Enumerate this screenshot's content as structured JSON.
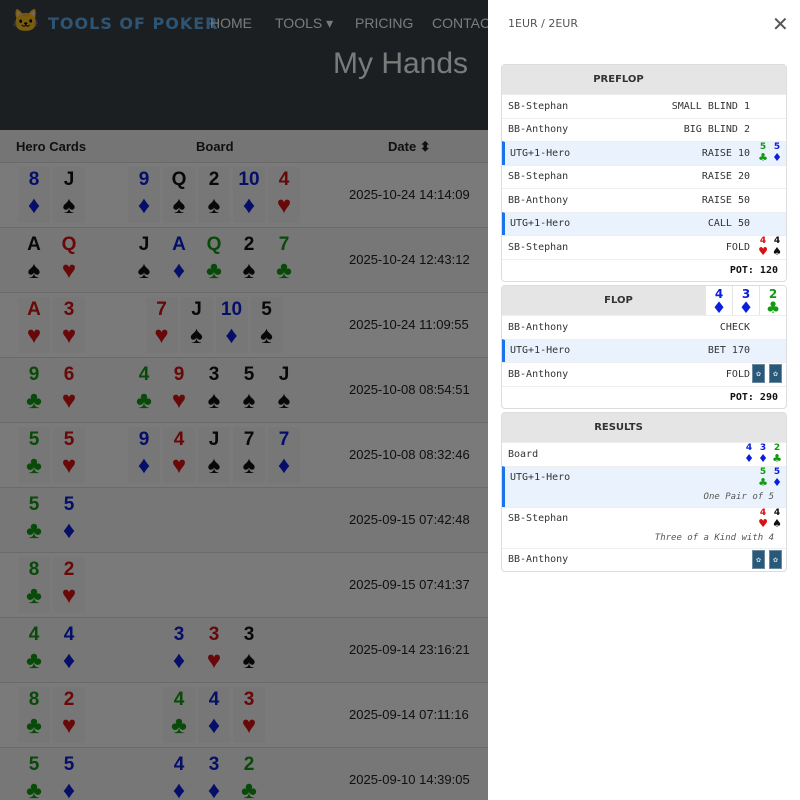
{
  "nav": {
    "brand": "TOOLS OF POKER",
    "links": [
      "HOME",
      "TOOLS ▾",
      "PRICING",
      "CONTACT"
    ]
  },
  "page_title": "My Hands",
  "table": {
    "headers": [
      "Hero Cards",
      "Board",
      "Date ⬍"
    ],
    "rows": [
      {
        "hero": [
          "8d",
          "Js"
        ],
        "board": [
          "9d",
          "Qs",
          "2s",
          "10d",
          "4h"
        ],
        "date": "2025-10-24 14:14:09"
      },
      {
        "hero": [
          "As",
          "Qh"
        ],
        "board": [
          "Js",
          "Ad",
          "Qc",
          "2s",
          "7c"
        ],
        "date": "2025-10-24 12:43:12"
      },
      {
        "hero": [
          "Ah",
          "3h"
        ],
        "board": [
          "7h",
          "Js",
          "10d",
          "5s"
        ],
        "date": "2025-10-24 11:09:55"
      },
      {
        "hero": [
          "9c",
          "6h"
        ],
        "board": [
          "4c",
          "9h",
          "3s",
          "5s",
          "Js"
        ],
        "date": "2025-10-08 08:54:51"
      },
      {
        "hero": [
          "5c",
          "5h"
        ],
        "board": [
          "9d",
          "4h",
          "Js",
          "7s",
          "7d"
        ],
        "date": "2025-10-08 08:32:46"
      },
      {
        "hero": [
          "5c",
          "5d"
        ],
        "board": [],
        "date": "2025-09-15 07:42:48"
      },
      {
        "hero": [
          "8c",
          "2h"
        ],
        "board": [],
        "date": "2025-09-15 07:41:37"
      },
      {
        "hero": [
          "4c",
          "4d"
        ],
        "board": [
          "3d",
          "3h",
          "3s"
        ],
        "date": "2025-09-14 23:16:21"
      },
      {
        "hero": [
          "8c",
          "2h"
        ],
        "board": [
          "4c",
          "4d",
          "3h"
        ],
        "date": "2025-09-14 07:11:16"
      },
      {
        "hero": [
          "5c",
          "5d"
        ],
        "board": [
          "4d",
          "3d",
          "2c"
        ],
        "date": "2025-09-10 14:39:05"
      }
    ]
  },
  "panel": {
    "stakes": "1EUR / 2EUR",
    "close": "✕",
    "sections": [
      {
        "title": "PREFLOP",
        "cards": [],
        "rows": [
          {
            "player": "SB-Stephan",
            "action": "SMALL BLIND 1",
            "cards": []
          },
          {
            "player": "BB-Anthony",
            "action": "BIG BLIND 2",
            "cards": []
          },
          {
            "player": "UTG+1-Hero",
            "action": "RAISE 10",
            "cards": [
              "5c",
              "5d"
            ],
            "hero": true
          },
          {
            "player": "SB-Stephan",
            "action": "RAISE 20",
            "cards": []
          },
          {
            "player": "BB-Anthony",
            "action": "RAISE 50",
            "cards": []
          },
          {
            "player": "UTG+1-Hero",
            "action": "CALL 50",
            "cards": [],
            "hero": true
          },
          {
            "player": "SB-Stephan",
            "action": "FOLD",
            "cards": [
              "4h",
              "4s"
            ]
          }
        ],
        "pot": "POT: 120"
      },
      {
        "title": "FLOP",
        "cards": [
          "4d",
          "3d",
          "2c"
        ],
        "rows": [
          {
            "player": "BB-Anthony",
            "action": "CHECK",
            "cards": []
          },
          {
            "player": "UTG+1-Hero",
            "action": "BET 170",
            "cards": [],
            "hero": true
          },
          {
            "player": "BB-Anthony",
            "action": "FOLD",
            "cards": [
              "back",
              "back"
            ]
          }
        ],
        "pot": "POT: 290"
      },
      {
        "title": "RESULTS",
        "cards": [],
        "rows": [
          {
            "player": "Board",
            "action": "",
            "cards": [
              "4d",
              "3d",
              "2c"
            ]
          },
          {
            "player": "UTG+1-Hero",
            "action": "",
            "cards": [
              "5c",
              "5d"
            ],
            "hero": true,
            "hand": "One Pair of 5"
          },
          {
            "player": "SB-Stephan",
            "action": "",
            "cards": [
              "4h",
              "4s"
            ],
            "hand": "Three of a Kind with 4"
          },
          {
            "player": "BB-Anthony",
            "action": "",
            "cards": [
              "back",
              "back"
            ]
          }
        ]
      }
    ]
  },
  "suit_colors": {
    "d": "#0a1fdc",
    "c": "#109a10",
    "h": "#d81010",
    "s": "#111111"
  }
}
